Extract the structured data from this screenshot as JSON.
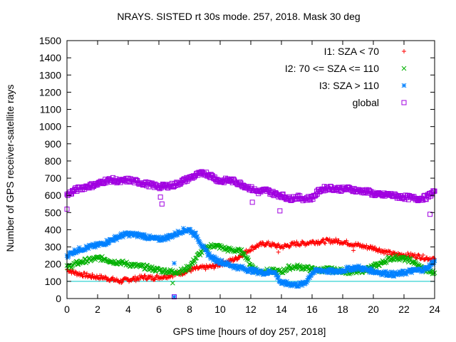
{
  "chart_data": {
    "type": "scatter",
    "title": "NRAYS. SISTED rt 30s mode. 257, 2018. Mask 30 deg",
    "xlabel": "GPS time [hours of doy 257, 2018]",
    "ylabel": "Number of GPS receiver-satellite rays",
    "xlim": [
      0,
      24
    ],
    "ylim": [
      0,
      1500
    ],
    "xticks": [
      0,
      2,
      4,
      6,
      8,
      10,
      12,
      14,
      16,
      18,
      20,
      22,
      24
    ],
    "yticks": [
      0,
      100,
      200,
      300,
      400,
      500,
      600,
      700,
      800,
      900,
      1000,
      1100,
      1200,
      1300,
      1400,
      1500
    ],
    "xtick_labels": [
      "0",
      "2",
      "4",
      "6",
      "8",
      "10",
      "12",
      "14",
      "16",
      "18",
      "20",
      "22",
      "24"
    ],
    "ytick_labels": [
      "0",
      "100",
      "200",
      "300",
      "400",
      "500",
      "600",
      "700",
      "800",
      "900",
      "1000",
      "1100",
      "1200",
      "1300",
      "1400",
      "1500"
    ],
    "legend_position": "top-right",
    "reference_line": {
      "y": 100,
      "color": "#00c8c8"
    },
    "series": [
      {
        "name": "I1: SZA < 70",
        "marker": "plus",
        "color": "#ff0000",
        "x": [
          0,
          0.5,
          1,
          1.5,
          2,
          2.5,
          3,
          3.5,
          4,
          4.5,
          5,
          5.5,
          6,
          6.5,
          7,
          7.5,
          8,
          8.5,
          9,
          9.5,
          10,
          10.5,
          11,
          11.5,
          12,
          12.5,
          13,
          13.5,
          14,
          14.5,
          15,
          15.5,
          16,
          16.5,
          17,
          17.5,
          18,
          18.5,
          19,
          19.5,
          20,
          20.5,
          21,
          21.5,
          22,
          22.5,
          23,
          23.5,
          24
        ],
        "values": [
          170,
          150,
          140,
          130,
          125,
          120,
          110,
          100,
          110,
          115,
          125,
          120,
          125,
          130,
          140,
          150,
          165,
          175,
          180,
          185,
          200,
          215,
          230,
          260,
          290,
          310,
          320,
          310,
          300,
          310,
          320,
          320,
          330,
          330,
          335,
          335,
          330,
          320,
          310,
          300,
          295,
          280,
          265,
          255,
          255,
          250,
          245,
          235,
          230
        ]
      },
      {
        "name": "I2: 70 <= SZA <= 110",
        "marker": "cross",
        "color": "#00b000",
        "x": [
          0,
          0.5,
          1,
          1.5,
          2,
          2.5,
          3,
          3.5,
          4,
          4.5,
          5,
          5.5,
          6,
          6.5,
          7,
          7.5,
          8,
          8.5,
          9,
          9.5,
          10,
          10.5,
          11,
          11.5,
          12,
          12.5,
          13,
          13.5,
          14,
          14.5,
          15,
          15.5,
          16,
          16.5,
          17,
          17.5,
          18,
          18.5,
          19,
          19.5,
          20,
          20.5,
          21,
          21.5,
          22,
          22.5,
          23,
          23.5,
          24
        ],
        "values": [
          180,
          200,
          215,
          225,
          235,
          230,
          215,
          210,
          200,
          190,
          185,
          175,
          165,
          160,
          155,
          160,
          185,
          245,
          290,
          310,
          300,
          285,
          280,
          270,
          195,
          155,
          160,
          160,
          155,
          180,
          185,
          180,
          170,
          165,
          170,
          165,
          160,
          155,
          155,
          170,
          185,
          205,
          230,
          240,
          230,
          220,
          185,
          160,
          150
        ]
      },
      {
        "name": "I3: SZA > 110",
        "marker": "star",
        "color": "#0080ff",
        "x": [
          0,
          0.5,
          1,
          1.5,
          2,
          2.5,
          3,
          3.5,
          4,
          4.5,
          5,
          5.5,
          6,
          6.5,
          7,
          7.5,
          8,
          8.5,
          9,
          9.5,
          10,
          10.5,
          11,
          11.5,
          12,
          12.5,
          13,
          13.5,
          14,
          14.5,
          15,
          15.5,
          16,
          16.5,
          17,
          17.5,
          18,
          18.5,
          19,
          19.5,
          20,
          20.5,
          21,
          21.5,
          22,
          22.5,
          23,
          23.5,
          24
        ],
        "values": [
          250,
          275,
          290,
          300,
          310,
          325,
          345,
          365,
          375,
          370,
          365,
          350,
          345,
          355,
          370,
          395,
          400,
          360,
          280,
          235,
          215,
          200,
          185,
          175,
          165,
          155,
          150,
          160,
          90,
          85,
          80,
          85,
          150,
          165,
          160,
          155,
          165,
          175,
          180,
          170,
          160,
          150,
          145,
          140,
          150,
          160,
          165,
          175,
          220
        ]
      },
      {
        "name": "global",
        "marker": "square",
        "color": "#a000e0",
        "x": [
          0,
          0.5,
          1,
          1.5,
          2,
          2.5,
          3,
          3.5,
          4,
          4.5,
          5,
          5.5,
          6,
          6.5,
          7,
          7.5,
          8,
          8.5,
          9,
          9.5,
          10,
          10.5,
          11,
          11.5,
          12,
          12.5,
          13,
          13.5,
          14,
          14.5,
          15,
          15.5,
          16,
          16.5,
          17,
          17.5,
          18,
          18.5,
          19,
          19.5,
          20,
          20.5,
          21,
          21.5,
          22,
          22.5,
          23,
          23.5,
          24
        ],
        "values": [
          600,
          630,
          645,
          655,
          665,
          685,
          690,
          680,
          690,
          680,
          670,
          660,
          650,
          655,
          660,
          680,
          700,
          720,
          730,
          710,
          680,
          690,
          680,
          660,
          640,
          620,
          630,
          610,
          600,
          580,
          590,
          580,
          585,
          630,
          645,
          640,
          635,
          640,
          625,
          625,
          610,
          600,
          605,
          595,
          590,
          585,
          580,
          590,
          625
        ]
      }
    ],
    "outliers": [
      {
        "series": 3,
        "x": 0.0,
        "y": 520
      },
      {
        "series": 3,
        "x": 6.1,
        "y": 590
      },
      {
        "series": 3,
        "x": 6.2,
        "y": 550
      },
      {
        "series": 3,
        "x": 12.1,
        "y": 560
      },
      {
        "series": 3,
        "x": 13.9,
        "y": 510
      },
      {
        "series": 3,
        "x": 23.7,
        "y": 490
      },
      {
        "series": 3,
        "x": 7.0,
        "y": 10
      },
      {
        "series": 2,
        "x": 7.0,
        "y": 205
      },
      {
        "series": 2,
        "x": 7.0,
        "y": 10
      },
      {
        "series": 1,
        "x": 6.9,
        "y": 90
      },
      {
        "series": 0,
        "x": 13.8,
        "y": 270
      },
      {
        "series": 0,
        "x": 18.7,
        "y": 280
      }
    ]
  }
}
